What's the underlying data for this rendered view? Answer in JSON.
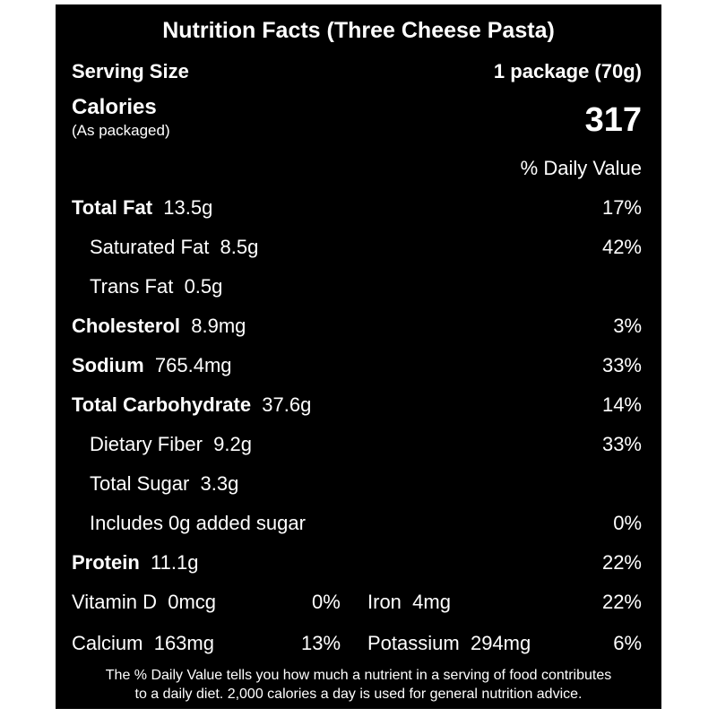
{
  "label": {
    "title": "Nutrition Facts (Three Cheese Pasta)",
    "serving_size_label": "Serving Size",
    "serving_size_value": "1 package (70g)",
    "calories_label": "Calories",
    "calories_note": "(As packaged)",
    "calories_value": "317",
    "daily_value_header": "% Daily Value",
    "nutrients": [
      {
        "name": "Total Fat",
        "amount": "13.5g",
        "dv": "17%"
      },
      {
        "name": "Saturated Fat",
        "amount": "8.5g",
        "dv": "42%"
      },
      {
        "name": "Trans Fat",
        "amount": "0.5g",
        "dv": ""
      },
      {
        "name": "Cholesterol",
        "amount": "8.9mg",
        "dv": "3%"
      },
      {
        "name": "Sodium",
        "amount": "765.4mg",
        "dv": "33%"
      },
      {
        "name": "Total Carbohydrate",
        "amount": "37.6g",
        "dv": "14%"
      },
      {
        "name": "Dietary Fiber",
        "amount": "9.2g",
        "dv": "33%"
      },
      {
        "name": "Total Sugar",
        "amount": "3.3g",
        "dv": ""
      },
      {
        "name": "Includes 0g added sugar",
        "amount": "",
        "dv": "0%"
      },
      {
        "name": "Protein",
        "amount": "11.1g",
        "dv": "22%"
      }
    ],
    "micronutrients": [
      {
        "name": "Vitamin D",
        "amount": "0mcg",
        "dv": "0%"
      },
      {
        "name": "Iron",
        "amount": "4mg",
        "dv": "22%"
      },
      {
        "name": "Calcium",
        "amount": "163mg",
        "dv": "13%"
      },
      {
        "name": "Potassium",
        "amount": "294mg",
        "dv": "6%"
      }
    ],
    "footer_line1": "The % Daily Value tells you how much a nutrient in a serving of food contributes",
    "footer_line2": "to a daily diet. 2,000 calories a day is used for general nutrition advice."
  }
}
